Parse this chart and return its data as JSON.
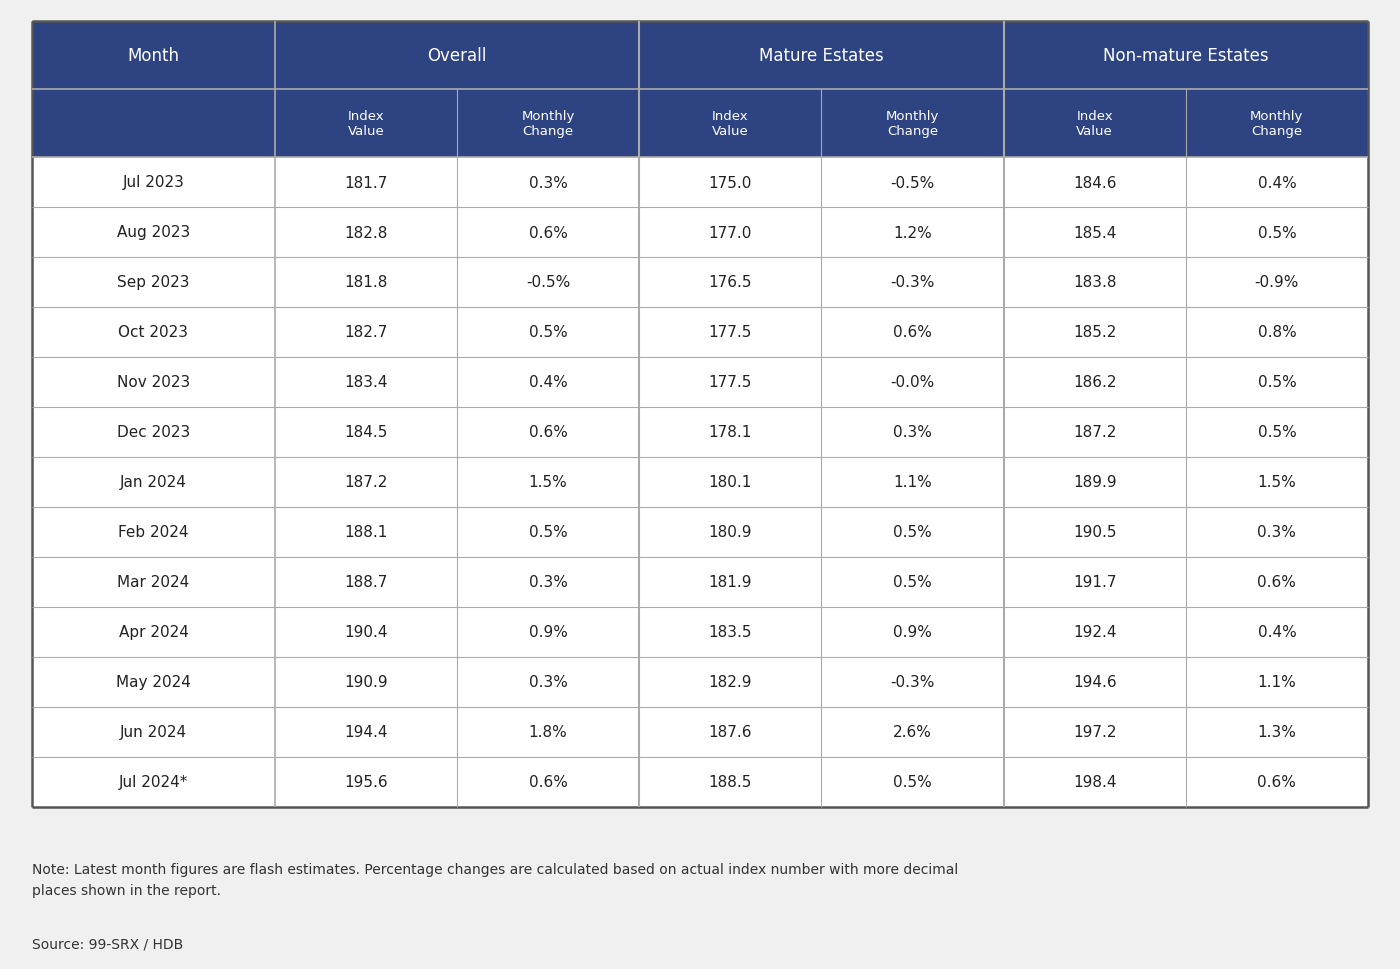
{
  "header_bg_color": "#2e4482",
  "header_text_color": "#ffffff",
  "row_bg": "#ffffff",
  "border_color": "#aaaaaa",
  "border_color_thick": "#555555",
  "text_color": "#222222",
  "rows": [
    [
      "Jul 2023",
      "181.7",
      "0.3%",
      "175.0",
      "-0.5%",
      "184.6",
      "0.4%"
    ],
    [
      "Aug 2023",
      "182.8",
      "0.6%",
      "177.0",
      "1.2%",
      "185.4",
      "0.5%"
    ],
    [
      "Sep 2023",
      "181.8",
      "-0.5%",
      "176.5",
      "-0.3%",
      "183.8",
      "-0.9%"
    ],
    [
      "Oct 2023",
      "182.7",
      "0.5%",
      "177.5",
      "0.6%",
      "185.2",
      "0.8%"
    ],
    [
      "Nov 2023",
      "183.4",
      "0.4%",
      "177.5",
      "-0.0%",
      "186.2",
      "0.5%"
    ],
    [
      "Dec 2023",
      "184.5",
      "0.6%",
      "178.1",
      "0.3%",
      "187.2",
      "0.5%"
    ],
    [
      "Jan 2024",
      "187.2",
      "1.5%",
      "180.1",
      "1.1%",
      "189.9",
      "1.5%"
    ],
    [
      "Feb 2024",
      "188.1",
      "0.5%",
      "180.9",
      "0.5%",
      "190.5",
      "0.3%"
    ],
    [
      "Mar 2024",
      "188.7",
      "0.3%",
      "181.9",
      "0.5%",
      "191.7",
      "0.6%"
    ],
    [
      "Apr 2024",
      "190.4",
      "0.9%",
      "183.5",
      "0.9%",
      "192.4",
      "0.4%"
    ],
    [
      "May 2024",
      "190.9",
      "0.3%",
      "182.9",
      "-0.3%",
      "194.6",
      "1.1%"
    ],
    [
      "Jun 2024",
      "194.4",
      "1.8%",
      "187.6",
      "2.6%",
      "197.2",
      "1.3%"
    ],
    [
      "Jul 2024*",
      "195.6",
      "0.6%",
      "188.5",
      "0.5%",
      "198.4",
      "0.6%"
    ]
  ],
  "note": "Note: Latest month figures are flash estimates. Percentage changes are calculated based on actual index number with more decimal\nplaces shown in the report.",
  "source": "Source: 99-SRX / HDB",
  "background_color": "#f0f0f0"
}
